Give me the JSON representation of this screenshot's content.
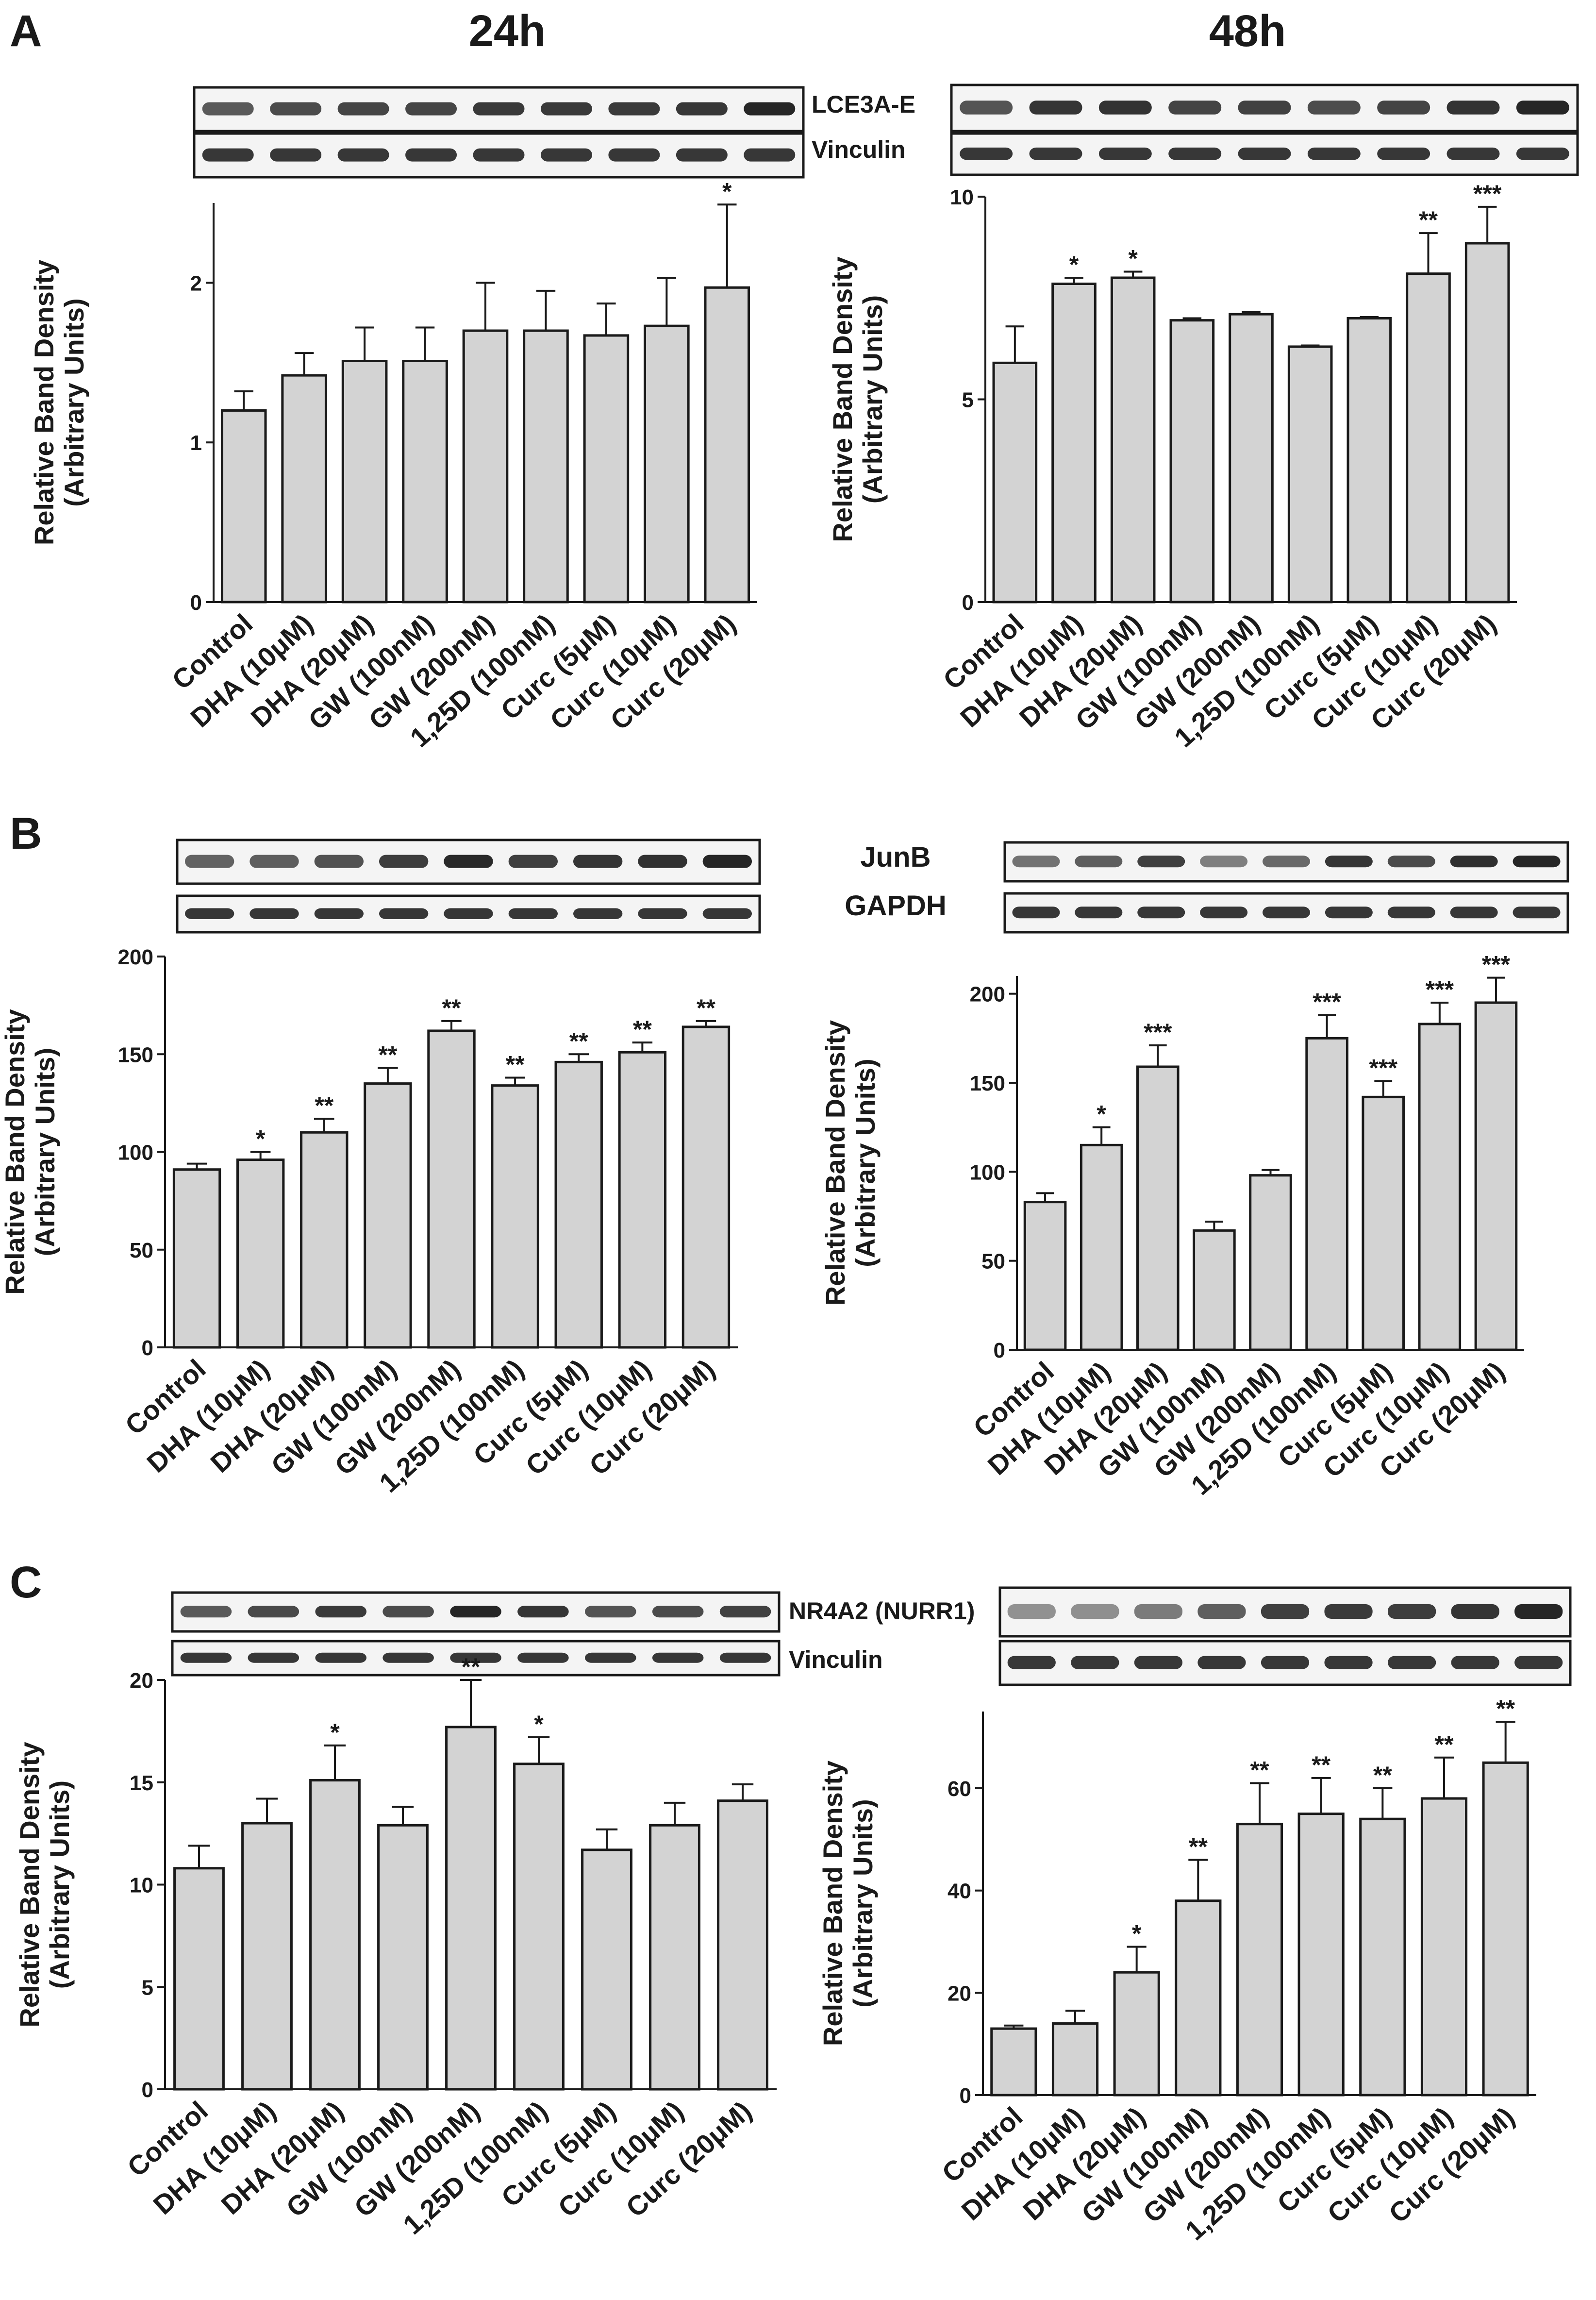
{
  "figure": {
    "col_titles": [
      "24h",
      "48h"
    ],
    "colors": {
      "bar_fill": "#d3d3d3",
      "bar_stroke": "#1a1a1a",
      "band": "#262626",
      "blot_bg": "#f4f4f4",
      "text": "#1a1a1a"
    }
  },
  "chart_data": [
    {
      "panel": "A",
      "time": "24h",
      "type": "bar",
      "blot_labels": [
        "LCE3A-E",
        "Vinculin"
      ],
      "categories": [
        "Control",
        "DHA (10μM)",
        "DHA (20μM)",
        "GW (100nM)",
        "GW (200nM)",
        "1,25D (100nM)",
        "Curc (5μM)",
        "Curc (10μM)",
        "Curc (20μM)"
      ],
      "values": [
        1.2,
        1.42,
        1.51,
        1.51,
        1.7,
        1.7,
        1.67,
        1.73,
        1.97
      ],
      "errors": [
        0.12,
        0.14,
        0.21,
        0.21,
        0.3,
        0.25,
        0.2,
        0.3,
        0.52
      ],
      "significance": [
        "",
        "",
        "",
        "",
        "",
        "",
        "",
        "",
        "*"
      ],
      "ylabel": [
        "Relative Band Density",
        "(Arbitrary Units)"
      ],
      "ylim": [
        0,
        2.5
      ],
      "yticks": [
        0,
        1,
        2
      ],
      "grid": false
    },
    {
      "panel": "A",
      "time": "48h",
      "type": "bar",
      "blot_labels": [],
      "categories": [
        "Control",
        "DHA (10μM)",
        "DHA (20μM)",
        "GW (100nM)",
        "GW (200nM)",
        "1,25D (100nM)",
        "Curc (5μM)",
        "Curc (10μM)",
        "Curc (20μM)"
      ],
      "values": [
        5.9,
        7.85,
        8.0,
        6.95,
        7.1,
        6.3,
        7.0,
        8.1,
        8.85
      ],
      "errors": [
        0.9,
        0.15,
        0.15,
        0.05,
        0.05,
        0.03,
        0.03,
        1.0,
        0.9
      ],
      "significance": [
        "",
        "*",
        "*",
        "",
        "",
        "",
        "",
        "**",
        "***"
      ],
      "ylabel": [
        "Relative Band Density",
        "(Arbitrary Units)"
      ],
      "ylim": [
        0,
        10
      ],
      "yticks": [
        0,
        5,
        10
      ],
      "grid": false
    },
    {
      "panel": "B",
      "time": "24h",
      "type": "bar",
      "blot_labels": [],
      "categories": [
        "Control",
        "DHA (10μM)",
        "DHA (20μM)",
        "GW (100nM)",
        "GW (200nM)",
        "1,25D (100nM)",
        "Curc (5μM)",
        "Curc (10μM)",
        "Curc (20μM)"
      ],
      "values": [
        91,
        96,
        110,
        135,
        162,
        134,
        146,
        151,
        164
      ],
      "errors": [
        3,
        4,
        7,
        8,
        5,
        4,
        4,
        5,
        3
      ],
      "significance": [
        "",
        "*",
        "**",
        "**",
        "**",
        "**",
        "**",
        "**",
        "**"
      ],
      "ylabel": [
        "Relative Band Density",
        "(Arbitrary Units)"
      ],
      "ylim": [
        0,
        200
      ],
      "yticks": [
        0,
        50,
        100,
        150,
        200
      ],
      "grid": false
    },
    {
      "panel": "B",
      "time": "48h",
      "type": "bar",
      "blot_labels": [
        "JunB",
        "GAPDH"
      ],
      "categories": [
        "Control",
        "DHA (10μM)",
        "DHA (20μM)",
        "GW (100nM)",
        "GW (200nM)",
        "1,25D (100nM)",
        "Curc (5μM)",
        "Curc (10μM)",
        "Curc (20μM)"
      ],
      "values": [
        83,
        115,
        159,
        67,
        98,
        175,
        142,
        183,
        195
      ],
      "errors": [
        5,
        10,
        12,
        5,
        3,
        13,
        9,
        12,
        14
      ],
      "significance": [
        "",
        "*",
        "***",
        "",
        "",
        "***",
        "***",
        "***",
        "***"
      ],
      "ylabel": [
        "Relative Band Density",
        "(Arbitrary Units)"
      ],
      "ylim": [
        0,
        210
      ],
      "yticks": [
        0,
        50,
        100,
        150,
        200
      ],
      "grid": false
    },
    {
      "panel": "C",
      "time": "24h",
      "type": "bar",
      "blot_labels": [
        "NR4A2 (NURR1)",
        "Vinculin"
      ],
      "categories": [
        "Control",
        "DHA (10μM)",
        "DHA (20μM)",
        "GW (100nM)",
        "GW (200nM)",
        "1,25D (100nM)",
        "Curc (5μM)",
        "Curc (10μM)",
        "Curc (20μM)"
      ],
      "values": [
        10.8,
        13.0,
        15.1,
        12.9,
        17.7,
        15.9,
        11.7,
        12.9,
        14.1
      ],
      "errors": [
        1.1,
        1.2,
        1.7,
        0.9,
        2.3,
        1.3,
        1.0,
        1.1,
        0.8
      ],
      "significance": [
        "",
        "",
        "*",
        "",
        "**",
        "*",
        "",
        "",
        ""
      ],
      "ylabel": [
        "Relative Band Density",
        "(Arbitrary Units)"
      ],
      "ylim": [
        0,
        20
      ],
      "yticks": [
        0,
        5,
        10,
        15,
        20
      ],
      "grid": false
    },
    {
      "panel": "C",
      "time": "48h",
      "type": "bar",
      "blot_labels": [],
      "categories": [
        "Control",
        "DHA (10μM)",
        "DHA (20μM)",
        "GW (100nM)",
        "GW (200nM)",
        "1,25D (100nM)",
        "Curc (5μM)",
        "Curc (10μM)",
        "Curc (20μM)"
      ],
      "values": [
        13,
        14,
        24,
        38,
        53,
        55,
        54,
        58,
        65
      ],
      "errors": [
        0.6,
        2.5,
        5,
        8,
        8,
        7,
        6,
        8,
        8
      ],
      "significance": [
        "",
        "",
        "*",
        "**",
        "**",
        "**",
        "**",
        "**",
        "**"
      ],
      "ylabel": [
        "Relative Band Density",
        "(Arbitrary Units)"
      ],
      "ylim": [
        0,
        75
      ],
      "yticks": [
        0,
        20,
        40,
        60
      ],
      "grid": false
    }
  ]
}
